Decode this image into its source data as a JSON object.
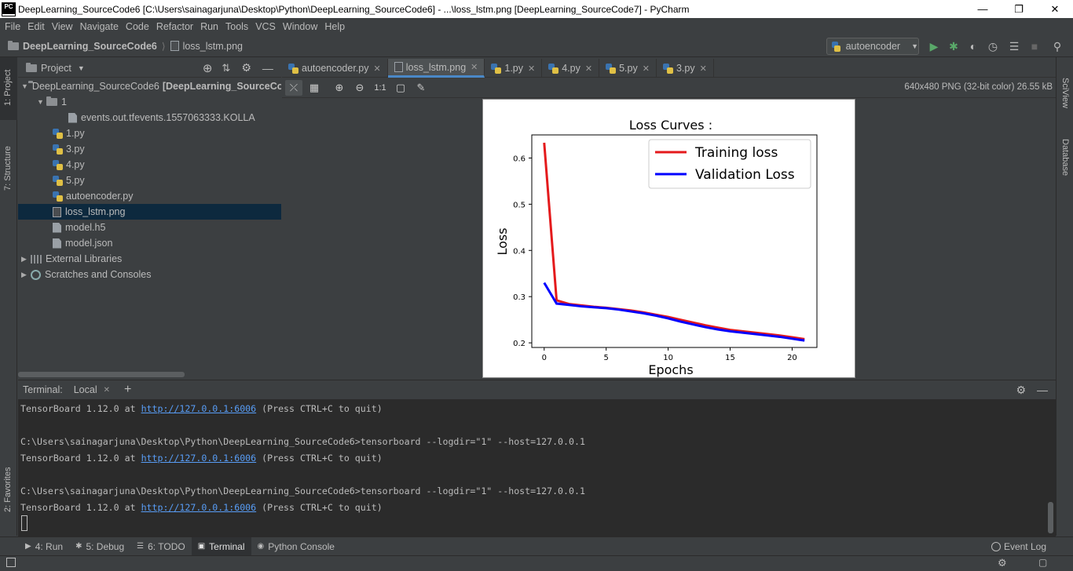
{
  "window": {
    "title": "DeepLearning_SourceCode6 [C:\\Users\\sainagarjuna\\Desktop\\Python\\DeepLearning_SourceCode6] - ...\\loss_lstm.png [DeepLearning_SourceCode7] - PyCharm",
    "logo": "PC"
  },
  "menu": [
    "File",
    "Edit",
    "View",
    "Navigate",
    "Code",
    "Refactor",
    "Run",
    "Tools",
    "VCS",
    "Window",
    "Help"
  ],
  "navbar": {
    "project": "DeepLearning_SourceCode6",
    "file": "loss_lstm.png",
    "run_config": "autoencoder"
  },
  "left_strip": {
    "project": "1: Project",
    "structure": "7: Structure",
    "favorites": "2: Favorites"
  },
  "right_strip": {
    "sciview": "SciView",
    "database": "Database"
  },
  "project_panel": {
    "title": "Project",
    "tree": [
      {
        "label": "DeepLearning_SourceCode6",
        "suffix": "[DeepLearning_SourceCod",
        "kind": "folder",
        "depth": 0,
        "expanded": true
      },
      {
        "label": "1",
        "kind": "folder",
        "depth": 1,
        "expanded": true
      },
      {
        "label": "events.out.tfevents.1557063333.KOLLA",
        "kind": "file",
        "depth": 3
      },
      {
        "label": "1.py",
        "kind": "py",
        "depth": 2
      },
      {
        "label": "3.py",
        "kind": "py",
        "depth": 2
      },
      {
        "label": "4.py",
        "kind": "py",
        "depth": 2
      },
      {
        "label": "5.py",
        "kind": "py",
        "depth": 2
      },
      {
        "label": "autoencoder.py",
        "kind": "py",
        "depth": 2
      },
      {
        "label": "loss_lstm.png",
        "kind": "image",
        "depth": 2,
        "selected": true
      },
      {
        "label": "model.h5",
        "kind": "file",
        "depth": 2
      },
      {
        "label": "model.json",
        "kind": "file",
        "depth": 2
      },
      {
        "label": "External Libraries",
        "kind": "lib",
        "depth": 0
      },
      {
        "label": "Scratches and Consoles",
        "kind": "scratch",
        "depth": 0
      }
    ]
  },
  "editor_tabs": [
    {
      "label": "autoencoder.py",
      "kind": "py"
    },
    {
      "label": "loss_lstm.png",
      "kind": "image",
      "active": true
    },
    {
      "label": "1.py",
      "kind": "py"
    },
    {
      "label": "4.py",
      "kind": "py"
    },
    {
      "label": "5.py",
      "kind": "py"
    },
    {
      "label": "3.py",
      "kind": "py"
    }
  ],
  "image_toolbar": {
    "zoom_actual": "1:1",
    "info": "640x480 PNG (32-bit color) 26.55 kB"
  },
  "chart_data": {
    "type": "line",
    "title": "Loss Curves :",
    "xlabel": "Epochs",
    "ylabel": "Loss",
    "xlim": [
      -1,
      22
    ],
    "ylim": [
      0.19,
      0.65
    ],
    "xticks": [
      0,
      5,
      10,
      15,
      20
    ],
    "yticks": [
      0.2,
      0.3,
      0.4,
      0.5,
      0.6
    ],
    "legend_position": "top-right",
    "x": [
      0,
      1,
      2,
      3,
      4,
      5,
      6,
      7,
      8,
      9,
      10,
      11,
      12,
      13,
      14,
      15,
      16,
      17,
      18,
      19,
      20,
      21
    ],
    "series": [
      {
        "name": "Training loss",
        "color": "#e41a1c",
        "values": [
          0.633,
          0.292,
          0.284,
          0.281,
          0.278,
          0.276,
          0.273,
          0.27,
          0.266,
          0.261,
          0.256,
          0.25,
          0.244,
          0.238,
          0.233,
          0.228,
          0.225,
          0.222,
          0.219,
          0.216,
          0.212,
          0.208
        ]
      },
      {
        "name": "Validation Loss",
        "color": "#0000ff",
        "values": [
          0.33,
          0.285,
          0.282,
          0.279,
          0.277,
          0.275,
          0.272,
          0.268,
          0.264,
          0.259,
          0.253,
          0.246,
          0.24,
          0.234,
          0.229,
          0.225,
          0.222,
          0.219,
          0.216,
          0.213,
          0.209,
          0.205
        ]
      }
    ]
  },
  "terminal": {
    "title": "Terminal:",
    "tab": "Local",
    "lines": [
      {
        "pre": "TensorBoard 1.12.0 at ",
        "link": "http://127.0.0.1:6006",
        "post": " (Press CTRL+C to quit)"
      },
      {
        "pre": ""
      },
      {
        "pre": "C:\\Users\\sainagarjuna\\Desktop\\Python\\DeepLearning_SourceCode6>tensorboard --logdir=\"1\" --host=127.0.0.1"
      },
      {
        "pre": "TensorBoard 1.12.0 at ",
        "link": "http://127.0.0.1:6006",
        "post": " (Press CTRL+C to quit)"
      },
      {
        "pre": ""
      },
      {
        "pre": "C:\\Users\\sainagarjuna\\Desktop\\Python\\DeepLearning_SourceCode6>tensorboard --logdir=\"1\" --host=127.0.0.1"
      },
      {
        "pre": "TensorBoard 1.12.0 at ",
        "link": "http://127.0.0.1:6006",
        "post": " (Press CTRL+C to quit)"
      }
    ]
  },
  "bottom_tools": [
    {
      "label": "4: Run",
      "icon": "play-icon"
    },
    {
      "label": "5: Debug",
      "icon": "bug-icon"
    },
    {
      "label": "6: TODO",
      "icon": "todo-icon"
    },
    {
      "label": "Terminal",
      "icon": "terminal-icon",
      "active": true
    },
    {
      "label": "Python Console",
      "icon": "python-console-icon"
    }
  ],
  "event_log": "Event Log"
}
